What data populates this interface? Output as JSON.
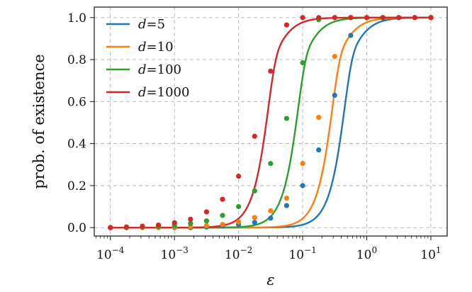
{
  "chart_data": {
    "type": "line",
    "xlabel": "ε",
    "ylabel": "prob. of existence",
    "x_scale": "log",
    "xlim": [
      5.6e-05,
      18
    ],
    "ylim": [
      -0.04,
      1.05
    ],
    "x_ticks": [
      {
        "value": 0.0001,
        "base": "10",
        "exp": "−4"
      },
      {
        "value": 0.001,
        "base": "10",
        "exp": "−3"
      },
      {
        "value": 0.01,
        "base": "10",
        "exp": "−2"
      },
      {
        "value": 0.1,
        "base": "10",
        "exp": "−1"
      },
      {
        "value": 1,
        "base": "10",
        "exp": "0"
      },
      {
        "value": 10,
        "base": "10",
        "exp": "1"
      }
    ],
    "y_ticks": [
      {
        "value": 0.0,
        "label": "0.0"
      },
      {
        "value": 0.2,
        "label": "0.2"
      },
      {
        "value": 0.4,
        "label": "0.4"
      },
      {
        "value": 0.6,
        "label": "0.6"
      },
      {
        "value": 0.8,
        "label": "0.8"
      },
      {
        "value": 1.0,
        "label": "1.0"
      }
    ],
    "grid": true,
    "legend_position": "top-left",
    "series": [
      {
        "name_var": "d",
        "name_eq": "=",
        "name_val": "5",
        "color": "#1f77b4",
        "curve_midpoint": 0.45,
        "curve_slope": 3.7,
        "points_x": [
          0.0001,
          0.000178,
          0.000316,
          0.000562,
          0.001,
          0.00178,
          0.00316,
          0.00562,
          0.01,
          0.0178,
          0.0316,
          0.0562,
          0.1,
          0.178,
          0.316,
          0.562,
          1.0,
          1.78,
          3.16,
          5.62,
          10
        ],
        "points_y": [
          0.0,
          0.0,
          0.0,
          0.0,
          0.0,
          0.0,
          0.003,
          0.007,
          0.015,
          0.025,
          0.045,
          0.105,
          0.2,
          0.37,
          0.63,
          0.915,
          1.0,
          1.0,
          1.0,
          1.0,
          1.0
        ]
      },
      {
        "name_var": "d",
        "name_eq": "=",
        "name_val": "10",
        "color": "#ff7f0e",
        "curve_midpoint": 0.29,
        "curve_slope": 3.7,
        "points_x": [
          0.0001,
          0.000178,
          0.000316,
          0.000562,
          0.001,
          0.00178,
          0.00316,
          0.00562,
          0.01,
          0.0178,
          0.0316,
          0.0562,
          0.1,
          0.178,
          0.316,
          0.562,
          1.0,
          1.78,
          3.16,
          5.62,
          10
        ],
        "points_y": [
          0.0,
          0.0,
          0.0,
          0.0,
          0.002,
          0.005,
          0.009,
          0.015,
          0.027,
          0.048,
          0.08,
          0.14,
          0.305,
          0.525,
          0.815,
          1.0,
          1.0,
          1.0,
          1.0,
          1.0,
          1.0
        ]
      },
      {
        "name_var": "d",
        "name_eq": "=",
        "name_val": "100",
        "color": "#2ca02c",
        "curve_midpoint": 0.085,
        "curve_slope": 3.7,
        "points_x": [
          0.0001,
          0.000178,
          0.000316,
          0.000562,
          0.001,
          0.00178,
          0.00316,
          0.00562,
          0.01,
          0.0178,
          0.0316,
          0.0562,
          0.1,
          0.178,
          0.316,
          0.562,
          1.0,
          1.78,
          3.16,
          5.62,
          10
        ],
        "points_y": [
          0.0,
          0.0,
          0.003,
          0.005,
          0.01,
          0.02,
          0.032,
          0.058,
          0.1,
          0.175,
          0.305,
          0.52,
          0.785,
          0.99,
          1.0,
          1.0,
          1.0,
          1.0,
          1.0,
          1.0,
          1.0
        ]
      },
      {
        "name_var": "d",
        "name_eq": "=",
        "name_val": "1000",
        "color": "#d62728",
        "curve_midpoint": 0.029,
        "curve_slope": 3.7,
        "points_x": [
          0.0001,
          0.000178,
          0.000316,
          0.000562,
          0.001,
          0.00178,
          0.00316,
          0.00562,
          0.01,
          0.0178,
          0.0316,
          0.0562,
          0.1,
          0.178,
          0.316,
          0.562,
          1.0,
          1.78,
          3.16,
          5.62,
          10
        ],
        "points_y": [
          0.0,
          0.003,
          0.007,
          0.012,
          0.023,
          0.04,
          0.075,
          0.135,
          0.245,
          0.435,
          0.745,
          0.965,
          1.0,
          1.0,
          1.0,
          1.0,
          1.0,
          1.0,
          1.0,
          1.0,
          1.0
        ]
      }
    ]
  }
}
